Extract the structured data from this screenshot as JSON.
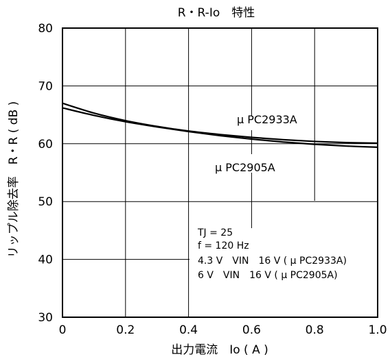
{
  "chart_data": {
    "type": "line",
    "title": "R・R-Io　特性",
    "xlabel": "出力電流　Io ( A )",
    "ylabel": "リップル除去率　R・R ( dB )",
    "xlim": [
      0,
      1.0
    ],
    "ylim": [
      30,
      80
    ],
    "x_ticks": [
      "0",
      "0.2",
      "0.4",
      "0.6",
      "0.8",
      "1.0"
    ],
    "y_ticks": [
      "30",
      "40",
      "50",
      "60",
      "70",
      "80"
    ],
    "grid": true,
    "series": [
      {
        "name": "μ PC2933A",
        "x": [
          0,
          0.1,
          0.2,
          0.3,
          0.4,
          0.5,
          0.6,
          0.7,
          0.8,
          0.9,
          1.0
        ],
        "y": [
          67.0,
          65.3,
          64.0,
          63.0,
          62.2,
          61.6,
          61.1,
          60.7,
          60.4,
          60.2,
          60.1
        ]
      },
      {
        "name": "μ PC2905A",
        "x": [
          0,
          0.1,
          0.2,
          0.3,
          0.4,
          0.5,
          0.6,
          0.7,
          0.8,
          0.9,
          1.0
        ],
        "y": [
          66.2,
          64.9,
          63.8,
          62.9,
          62.1,
          61.4,
          60.8,
          60.3,
          59.9,
          59.6,
          59.4
        ]
      }
    ],
    "conditions": [
      "TJ = 25",
      "f = 120 Hz",
      "4.3 V　VIN　16 V ( μ PC2933A)",
      "6 V　VIN　16 V ( μ PC2905A)"
    ],
    "line_color": "#000000",
    "grid_color": "#000000"
  }
}
